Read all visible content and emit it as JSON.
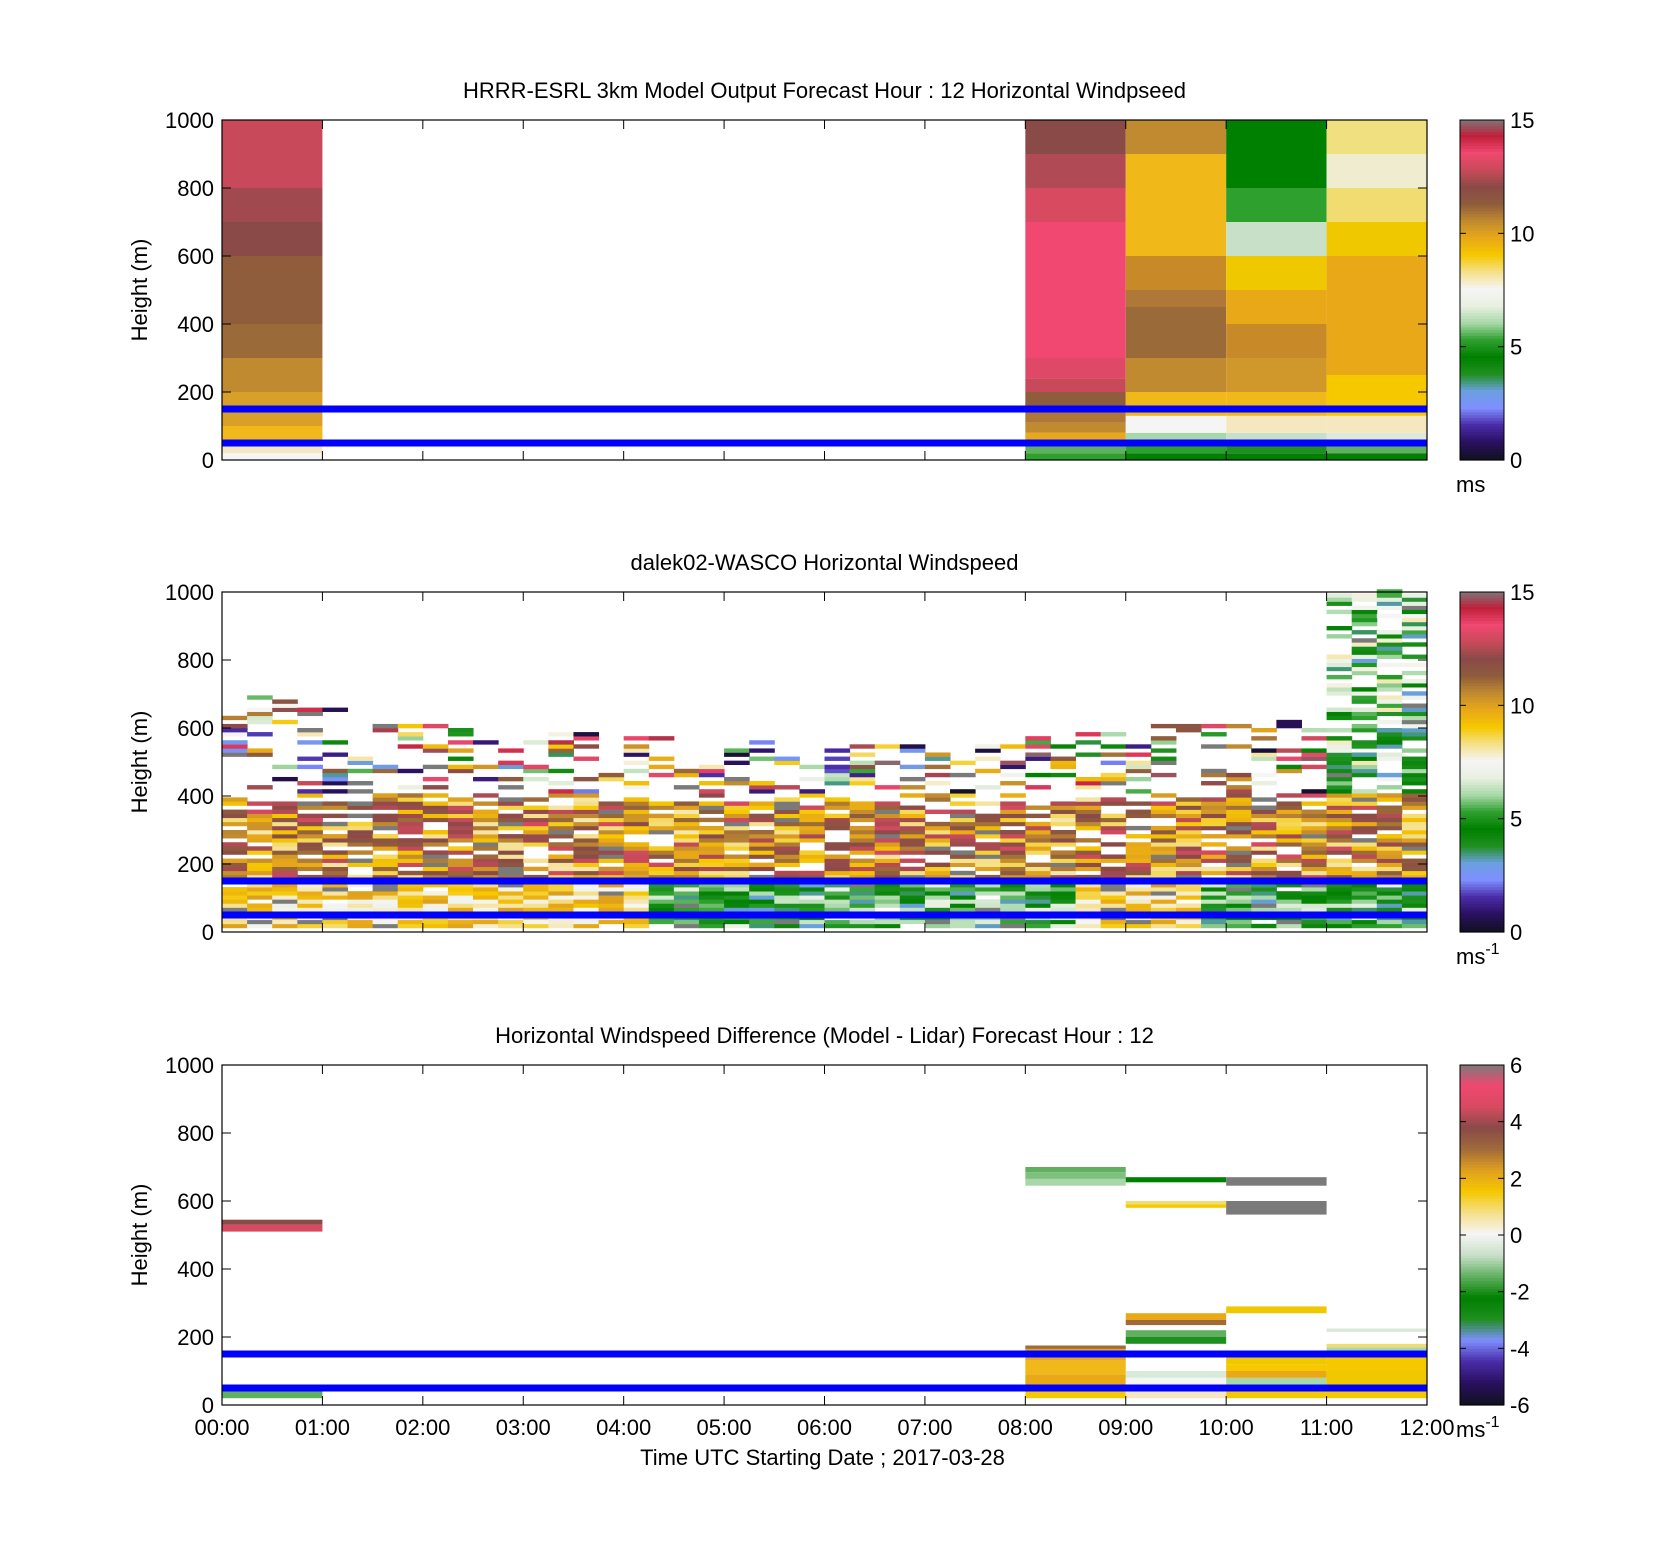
{
  "colors": {
    "speed_scale": [
      "#111122",
      "#2a1060",
      "#4a2ca8",
      "#7f8fff",
      "#6aa0e0",
      "#1f8f1f",
      "#008000",
      "#2ea02e",
      "#a8d8a8",
      "#e8f0e0",
      "#f5f5f5",
      "#f5e08a",
      "#f5c800",
      "#e8a818",
      "#c08a30",
      "#8f5c3c",
      "#8a4a48",
      "#c84a5a",
      "#f04870",
      "#c0203a",
      "#7a7a7a"
    ],
    "diff_scale": [
      "#111122",
      "#2a1060",
      "#4a2ca8",
      "#7f8fff",
      "#1f8f1f",
      "#008000",
      "#60b060",
      "#c8e0c8",
      "#f5f5f5",
      "#f5e08a",
      "#f5c800",
      "#e0a020",
      "#a06a3a",
      "#8a4a48",
      "#d84a60",
      "#f04870",
      "#7a7a7a"
    ],
    "reference_lines": "#0000ff"
  },
  "chart_data": [
    {
      "type": "heatmap",
      "title": "HRRR-ESRL 3km Model Output   Forecast Hour : 12 Horizontal Windpseed",
      "ylabel": "Height (m)",
      "ylim": [
        0,
        1000
      ],
      "yticks": [
        "0",
        "200",
        "400",
        "600",
        "800",
        "1000"
      ],
      "xlim": [
        0,
        12
      ],
      "colorbar": {
        "min": 0,
        "max": 15,
        "ticks": [
          "0",
          "5",
          "10",
          "15"
        ],
        "unit": "ms",
        "unit_sup": ""
      },
      "reference_lines_m": [
        50,
        150
      ],
      "columns": [
        {
          "t0": 0,
          "t1": 1,
          "cells": [
            [
              0,
              20,
              "#f5f5f5"
            ],
            [
              20,
              40,
              "#f5e8c0"
            ],
            [
              40,
              60,
              "#e8a818"
            ],
            [
              60,
              100,
              "#f0b818"
            ],
            [
              100,
              200,
              "#d8a028"
            ],
            [
              200,
              300,
              "#c08a30"
            ],
            [
              300,
              400,
              "#9a6a38"
            ],
            [
              400,
              600,
              "#8f5c3c"
            ],
            [
              600,
              700,
              "#8a4a48"
            ],
            [
              700,
              800,
              "#a04a50"
            ],
            [
              800,
              1000,
              "#c84a5a"
            ]
          ]
        },
        {
          "t0": 8,
          "t1": 9,
          "cells": [
            [
              0,
              20,
              "#2ea02e"
            ],
            [
              20,
              40,
              "#60b060"
            ],
            [
              40,
              80,
              "#e8a818"
            ],
            [
              80,
              110,
              "#c08a30"
            ],
            [
              110,
              150,
              "#b07838"
            ],
            [
              150,
              200,
              "#8f5c3c"
            ],
            [
              200,
              240,
              "#c84a5a"
            ],
            [
              240,
              300,
              "#e04868"
            ],
            [
              300,
              700,
              "#f04870"
            ],
            [
              700,
              800,
              "#d84a60"
            ],
            [
              800,
              900,
              "#b04a54"
            ],
            [
              900,
              1000,
              "#8a4a48"
            ]
          ]
        },
        {
          "t0": 9,
          "t1": 10,
          "cells": [
            [
              0,
              20,
              "#008000"
            ],
            [
              20,
              40,
              "#2ea02e"
            ],
            [
              40,
              80,
              "#a8d8a8"
            ],
            [
              80,
              130,
              "#f5f5f5"
            ],
            [
              130,
              200,
              "#f0b818"
            ],
            [
              200,
              300,
              "#c08a30"
            ],
            [
              300,
              450,
              "#9a6a38"
            ],
            [
              450,
              500,
              "#b07838"
            ],
            [
              500,
              600,
              "#c88a28"
            ],
            [
              600,
              900,
              "#f0b818"
            ],
            [
              900,
              1000,
              "#c08a30"
            ]
          ]
        },
        {
          "t0": 10,
          "t1": 11,
          "cells": [
            [
              0,
              20,
              "#008000"
            ],
            [
              20,
              40,
              "#1f8f1f"
            ],
            [
              40,
              80,
              "#c8e0c8"
            ],
            [
              80,
              130,
              "#f5e8c0"
            ],
            [
              130,
              200,
              "#f0b818"
            ],
            [
              200,
              300,
              "#d0982a"
            ],
            [
              300,
              400,
              "#c88a28"
            ],
            [
              400,
              500,
              "#e8a818"
            ],
            [
              500,
              600,
              "#f0c800"
            ],
            [
              600,
              700,
              "#c8e0c8"
            ],
            [
              700,
              800,
              "#2ea02e"
            ],
            [
              800,
              1000,
              "#008000"
            ]
          ]
        },
        {
          "t0": 11,
          "t1": 12,
          "cells": [
            [
              0,
              20,
              "#008000"
            ],
            [
              20,
              40,
              "#60b060"
            ],
            [
              40,
              80,
              "#e0e8d8"
            ],
            [
              80,
              130,
              "#f5e8c0"
            ],
            [
              130,
              250,
              "#f5c800"
            ],
            [
              250,
              600,
              "#e8a818"
            ],
            [
              600,
              700,
              "#f0c800"
            ],
            [
              700,
              800,
              "#f0dc70"
            ],
            [
              800,
              900,
              "#f0ecd0"
            ],
            [
              900,
              1000,
              "#f0e080"
            ]
          ]
        }
      ]
    },
    {
      "type": "heatmap",
      "title": "dalek02-WASCO  Horizontal Windspeed",
      "ylabel": "Height (m)",
      "ylim": [
        0,
        1000
      ],
      "yticks": [
        "0",
        "200",
        "400",
        "600",
        "800",
        "1000"
      ],
      "xlim": [
        0,
        12
      ],
      "colorbar": {
        "min": 0,
        "max": 15,
        "ticks": [
          "0",
          "5",
          "10",
          "15"
        ],
        "unit": "ms",
        "unit_sup": "-1"
      },
      "reference_lines_m": [
        50,
        150
      ],
      "lidar_profiles": 48,
      "lidar_gate_m": 12
    },
    {
      "type": "heatmap",
      "title": "Horizontal Windspeed Difference (Model - Lidar) Forecast Hour : 12",
      "ylabel": "Height (m)",
      "xlabel": "Time UTC  Starting Date ; 2017-03-28",
      "ylim": [
        0,
        1000
      ],
      "yticks": [
        "0",
        "200",
        "400",
        "600",
        "800",
        "1000"
      ],
      "xlim": [
        0,
        12
      ],
      "xticks": [
        "00:00",
        "01:00",
        "02:00",
        "03:00",
        "04:00",
        "05:00",
        "06:00",
        "07:00",
        "08:00",
        "09:00",
        "10:00",
        "11:00",
        "12:00"
      ],
      "colorbar": {
        "min": -6,
        "max": 6,
        "ticks": [
          "-6",
          "-4",
          "-2",
          "0",
          "2",
          "4",
          "6"
        ],
        "unit": "ms",
        "unit_sup": "-1"
      },
      "reference_lines_m": [
        50,
        150
      ],
      "columns": [
        {
          "t0": 0,
          "t1": 1,
          "cells": [
            [
              20,
              40,
              "#60b060"
            ],
            [
              40,
              60,
              "#c84a5a"
            ],
            [
              510,
              530,
              "#d84a60"
            ],
            [
              530,
              545,
              "#8a4a48"
            ]
          ]
        },
        {
          "t0": 8,
          "t1": 9,
          "cells": [
            [
              20,
              60,
              "#f5c800"
            ],
            [
              60,
              90,
              "#e8a818"
            ],
            [
              90,
              130,
              "#f0b818"
            ],
            [
              130,
              165,
              "#e8a818"
            ],
            [
              165,
              175,
              "#a06a3a"
            ],
            [
              645,
              665,
              "#a8d8a8"
            ],
            [
              665,
              685,
              "#7fc07f"
            ],
            [
              685,
              700,
              "#60b060"
            ]
          ]
        },
        {
          "t0": 9,
          "t1": 10,
          "cells": [
            [
              20,
              40,
              "#f5e8c0"
            ],
            [
              40,
              60,
              "#c8e0c8"
            ],
            [
              60,
              80,
              "#f5f5f5"
            ],
            [
              80,
              100,
              "#d8ead8"
            ],
            [
              180,
              200,
              "#1f8f1f"
            ],
            [
              200,
              220,
              "#60b060"
            ],
            [
              235,
              250,
              "#a06a3a"
            ],
            [
              250,
              270,
              "#e8a818"
            ],
            [
              580,
              590,
              "#f5c800"
            ],
            [
              590,
              600,
              "#f0dc70"
            ],
            [
              655,
              670,
              "#008000"
            ]
          ]
        },
        {
          "t0": 10,
          "t1": 11,
          "cells": [
            [
              20,
              40,
              "#f5c800"
            ],
            [
              40,
              60,
              "#e0e8d8"
            ],
            [
              60,
              80,
              "#a8d8a8"
            ],
            [
              80,
              100,
              "#e8a818"
            ],
            [
              100,
              120,
              "#f5c800"
            ],
            [
              120,
              140,
              "#f0c800"
            ],
            [
              270,
              290,
              "#f0c800"
            ],
            [
              560,
              600,
              "#7a7a7a"
            ],
            [
              645,
              670,
              "#7a7a7a"
            ]
          ]
        },
        {
          "t0": 11,
          "t1": 12,
          "cells": [
            [
              20,
              50,
              "#f5c800"
            ],
            [
              50,
              100,
              "#f0c800"
            ],
            [
              100,
              140,
              "#f5c800"
            ],
            [
              140,
              170,
              "#a8d8a8"
            ],
            [
              170,
              180,
              "#f0dc70"
            ],
            [
              215,
              225,
              "#d8ead8"
            ]
          ]
        }
      ]
    }
  ]
}
